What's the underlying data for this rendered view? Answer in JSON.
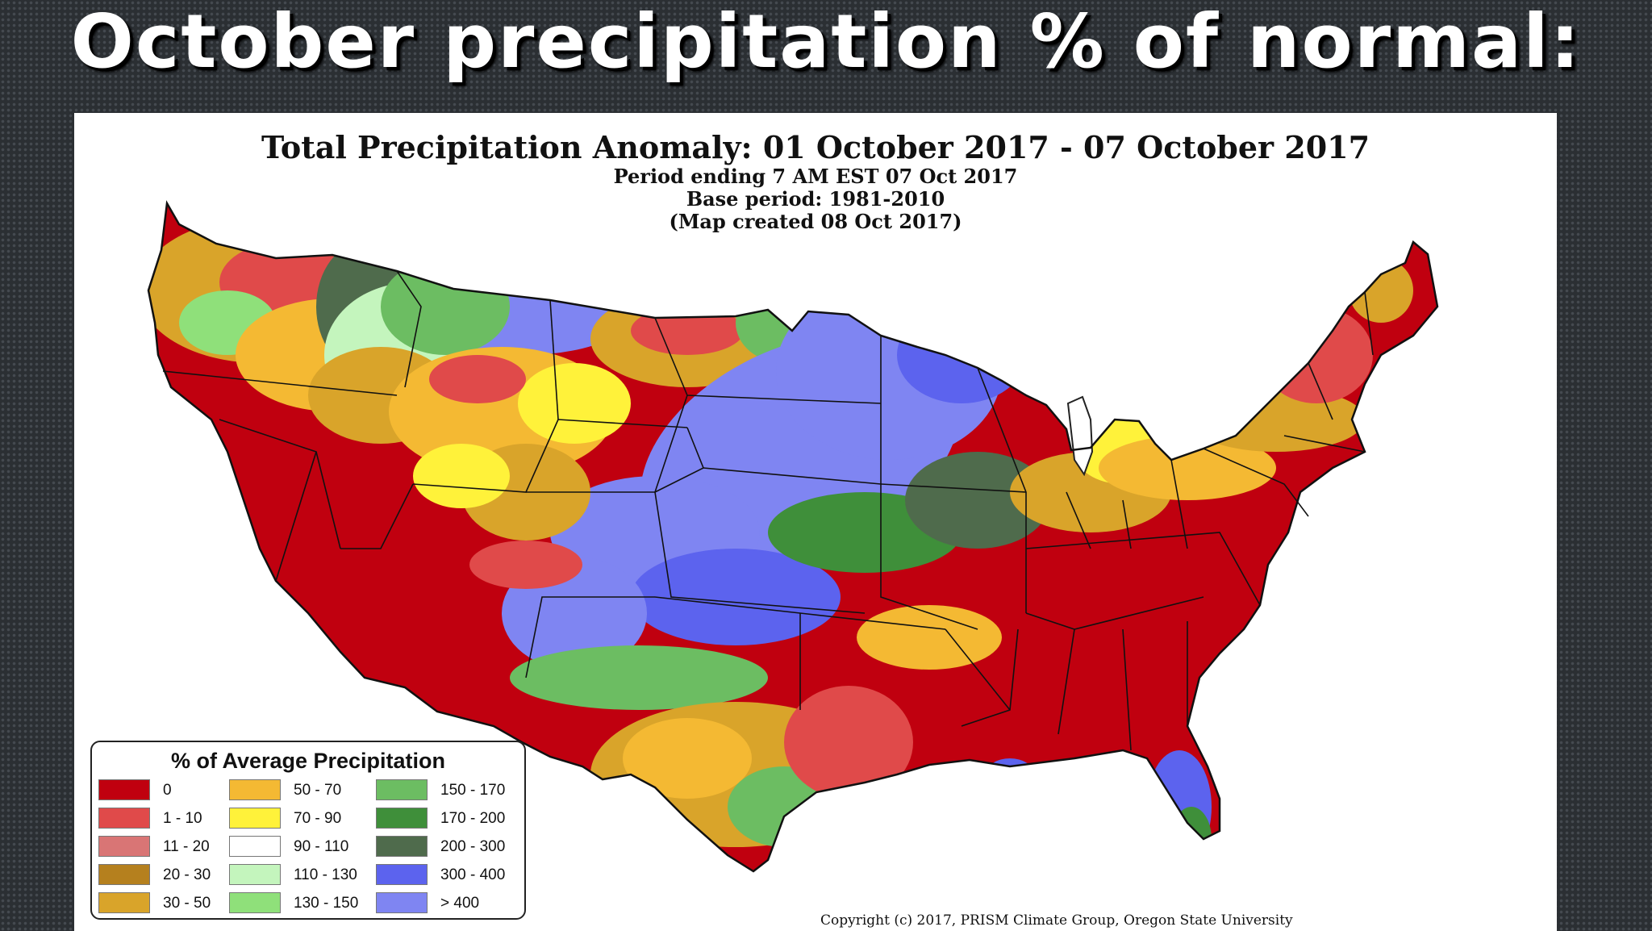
{
  "slide": {
    "title": "October precipitation % of normal:"
  },
  "map": {
    "title": "Total Precipitation Anomaly: 01 October 2017 - 07 October 2017",
    "subtitle_lines": [
      "Period ending 7 AM EST 07 Oct 2017",
      "Base period: 1981-2010",
      "(Map created 08 Oct 2017)"
    ],
    "copyright": "Copyright (c) 2017, PRISM Climate Group, Oregon State University"
  },
  "legend": {
    "title": "% of Average Precipitation",
    "items": [
      {
        "label": "0",
        "color": "#c0000f"
      },
      {
        "label": "1 - 10",
        "color": "#e04a4a"
      },
      {
        "label": "11 - 20",
        "color": "#d97575"
      },
      {
        "label": "20 - 30",
        "color": "#b5801e"
      },
      {
        "label": "30 - 50",
        "color": "#d9a42a"
      },
      {
        "label": "50 - 70",
        "color": "#f4b933"
      },
      {
        "label": "70 - 90",
        "color": "#fff23a"
      },
      {
        "label": "90 - 110",
        "color": "#ffffff"
      },
      {
        "label": "110 - 130",
        "color": "#c4f5bd"
      },
      {
        "label": "130 - 150",
        "color": "#8fe07a"
      },
      {
        "label": "150 - 170",
        "color": "#6cbd62"
      },
      {
        "label": "170 - 200",
        "color": "#3f8f3a"
      },
      {
        "label": "200 - 300",
        "color": "#4f6b4c"
      },
      {
        "label": "300 - 400",
        "color": "#5c63ee"
      },
      {
        "label": "> 400",
        "color": "#7f85f2"
      }
    ]
  }
}
